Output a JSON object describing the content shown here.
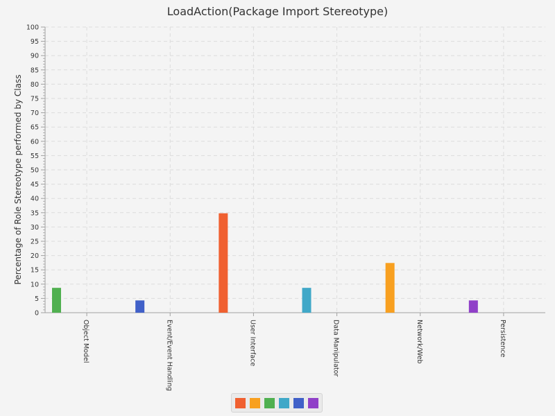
{
  "chart_data": {
    "type": "bar",
    "title": "LoadAction(Package Import Stereotype)",
    "xlabel": "",
    "ylabel": "Percentage of Role Stereotype performed by Class",
    "ylim": [
      0,
      100
    ],
    "yticks": [
      0,
      5,
      10,
      15,
      20,
      25,
      30,
      35,
      40,
      45,
      50,
      55,
      60,
      65,
      70,
      75,
      80,
      85,
      90,
      95,
      100
    ],
    "grid": true,
    "categories": [
      "Object Model",
      "Event/Event Handling",
      "User Interface",
      "Data Manipulator",
      "Network/Web",
      "Persistence"
    ],
    "series": [
      {
        "color": "#f06030",
        "values": [
          0,
          0,
          34.8,
          0,
          0,
          0
        ]
      },
      {
        "color": "#f8a020",
        "values": [
          0,
          0,
          0,
          0,
          17.4,
          0
        ]
      },
      {
        "color": "#50b050",
        "values": [
          8.7,
          0,
          0,
          0,
          0,
          0
        ]
      },
      {
        "color": "#40a8c8",
        "values": [
          0,
          0,
          0,
          8.7,
          0,
          0
        ]
      },
      {
        "color": "#4060c8",
        "values": [
          0,
          4.3,
          0,
          0,
          0,
          0
        ]
      },
      {
        "color": "#9040c8",
        "values": [
          0,
          0,
          0,
          0,
          0,
          4.3
        ]
      }
    ],
    "bar_series_order": [
      2,
      4,
      0,
      3,
      1,
      5
    ],
    "legend_position": "bottom"
  }
}
